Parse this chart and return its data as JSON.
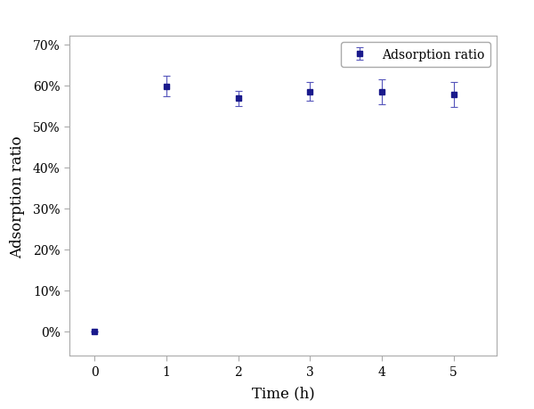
{
  "x": [
    0,
    1,
    2,
    3,
    4,
    5
  ],
  "y": [
    0.0,
    0.598,
    0.568,
    0.585,
    0.584,
    0.578
  ],
  "yerr": [
    0.0,
    0.025,
    0.018,
    0.022,
    0.03,
    0.03
  ],
  "line_color": "#3333aa",
  "ecolor": "#5555bb",
  "marker": "s",
  "marker_color": "#1a1a8c",
  "marker_size": 4,
  "line_width": 1.0,
  "xlabel": "Time (h)",
  "ylabel": "Adsorption ratio",
  "legend_label": "Adsorption ratio",
  "xlim": [
    -0.35,
    5.6
  ],
  "ylim": [
    -0.06,
    0.72
  ],
  "yticks": [
    0.0,
    0.1,
    0.2,
    0.3,
    0.4,
    0.5,
    0.6,
    0.7
  ],
  "xticks": [
    0,
    1,
    2,
    3,
    4,
    5
  ],
  "background_color": "#ffffff",
  "label_fontsize": 12,
  "tick_fontsize": 10,
  "legend_fontsize": 10,
  "spine_color": "#aaaaaa"
}
